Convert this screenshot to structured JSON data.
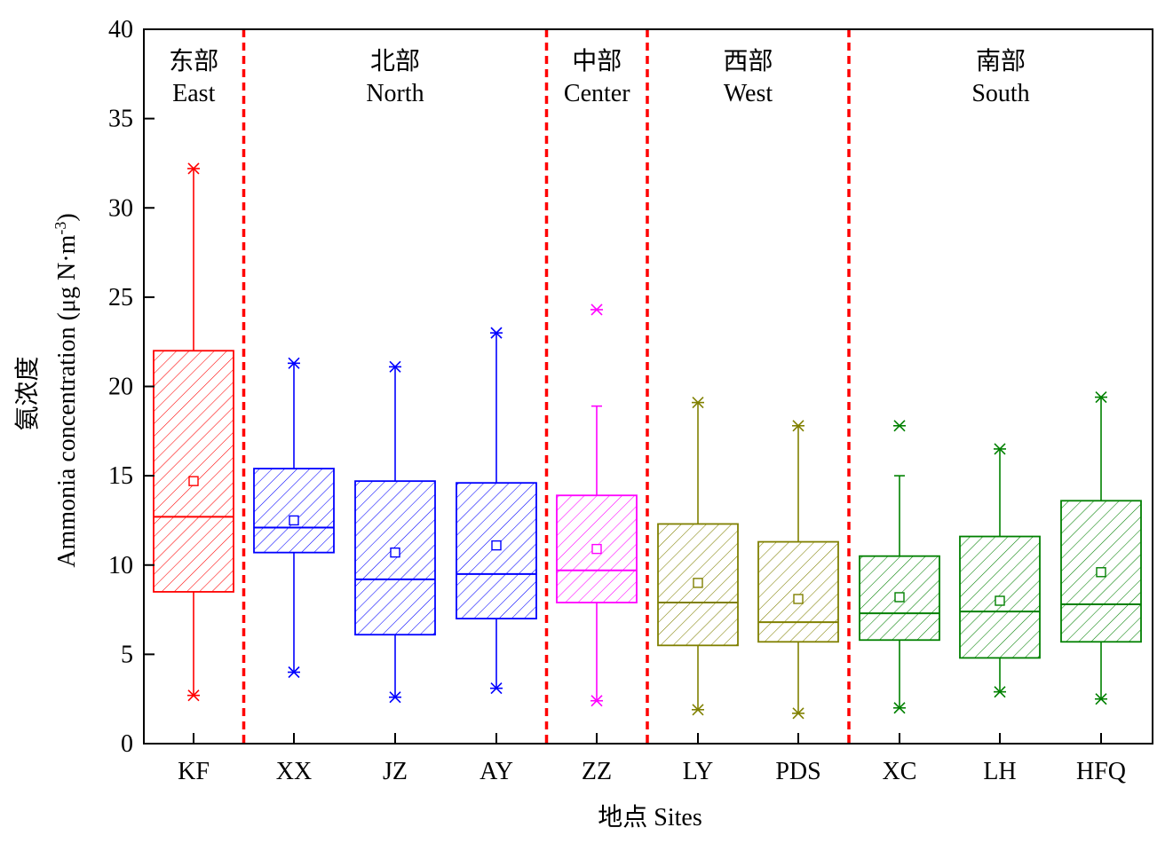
{
  "chart_data": {
    "type": "box",
    "xlabel": "地点 Sites",
    "ylabel_cn": "氨浓度",
    "ylabel_en": "Ammonia concentration (μg N·m",
    "ylabel_sup": "-3",
    "ylabel_end": ")",
    "ylim": [
      0,
      40
    ],
    "yticks": [
      0,
      5,
      10,
      15,
      20,
      25,
      30,
      35,
      40
    ],
    "grid": false,
    "categories": [
      "KF",
      "XX",
      "JZ",
      "AY",
      "ZZ",
      "LY",
      "PDS",
      "XC",
      "LH",
      "HFQ"
    ],
    "regions": [
      {
        "cn": "东部",
        "en": "East",
        "categories": [
          "KF"
        ]
      },
      {
        "cn": "北部",
        "en": "North",
        "categories": [
          "XX",
          "JZ",
          "AY"
        ]
      },
      {
        "cn": "中部",
        "en": "Center",
        "categories": [
          "ZZ"
        ]
      },
      {
        "cn": "西部",
        "en": "West",
        "categories": [
          "LY",
          "PDS"
        ]
      },
      {
        "cn": "南部",
        "en": "South",
        "categories": [
          "XC",
          "LH",
          "HFQ"
        ]
      }
    ],
    "boxes": [
      {
        "site": "KF",
        "color": "#ff0000",
        "min": 2.7,
        "q1": 8.5,
        "median": 12.7,
        "q3": 22.0,
        "whisker_high": 32.2,
        "max": 32.2,
        "mean": 14.7
      },
      {
        "site": "XX",
        "color": "#0000ff",
        "min": 4.0,
        "q1": 10.7,
        "median": 12.1,
        "q3": 15.4,
        "whisker_high": 21.3,
        "max": 21.3,
        "mean": 12.5
      },
      {
        "site": "JZ",
        "color": "#0000ff",
        "min": 2.6,
        "q1": 6.1,
        "median": 9.2,
        "q3": 14.7,
        "whisker_high": 21.1,
        "max": 21.1,
        "mean": 10.7
      },
      {
        "site": "AY",
        "color": "#0000ff",
        "min": 3.1,
        "q1": 7.0,
        "median": 9.5,
        "q3": 14.6,
        "whisker_high": 23.0,
        "max": 23.0,
        "mean": 11.1
      },
      {
        "site": "ZZ",
        "color": "#ff00ff",
        "min": 2.4,
        "q1": 7.9,
        "median": 9.7,
        "q3": 13.9,
        "whisker_high": 18.9,
        "max": 24.3,
        "mean": 10.9
      },
      {
        "site": "LY",
        "color": "#808000",
        "min": 1.9,
        "q1": 5.5,
        "median": 7.9,
        "q3": 12.3,
        "whisker_high": 19.1,
        "max": 19.1,
        "mean": 9.0
      },
      {
        "site": "PDS",
        "color": "#808000",
        "min": 1.7,
        "q1": 5.7,
        "median": 6.8,
        "q3": 11.3,
        "whisker_high": 17.8,
        "max": 17.8,
        "mean": 8.1
      },
      {
        "site": "XC",
        "color": "#008000",
        "min": 2.0,
        "q1": 5.8,
        "median": 7.3,
        "q3": 10.5,
        "whisker_high": 15.0,
        "max": 17.8,
        "mean": 8.2
      },
      {
        "site": "LH",
        "color": "#008000",
        "min": 2.9,
        "q1": 4.8,
        "median": 7.4,
        "q3": 11.6,
        "whisker_high": 16.5,
        "max": 16.5,
        "mean": 8.0
      },
      {
        "site": "HFQ",
        "color": "#008000",
        "min": 2.5,
        "q1": 5.7,
        "median": 7.8,
        "q3": 13.6,
        "whisker_high": 19.4,
        "max": 19.4,
        "mean": 9.6
      }
    ],
    "separator_color": "#ff0000"
  }
}
